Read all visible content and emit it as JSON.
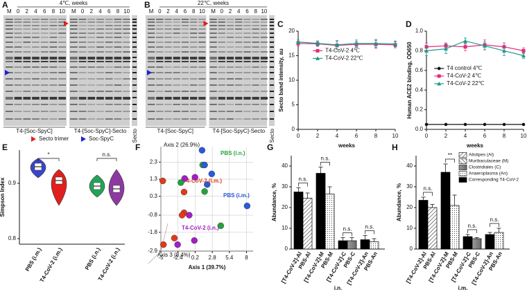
{
  "panel_labels": [
    "A",
    "B",
    "C",
    "D",
    "E",
    "F",
    "G",
    "H"
  ],
  "gels": [
    {
      "title": "4℃, weeks",
      "lanes": [
        "M",
        "0",
        "2",
        "4",
        "6",
        "8",
        "10",
        "M",
        "0",
        "2",
        "4",
        "6",
        "8",
        "10"
      ],
      "groups": [
        "T4-[Soc-SpyC]",
        "T4-[Soc-SpyC]-Secto"
      ],
      "side_label": "Secto"
    },
    {
      "title": "22℃, weeks",
      "lanes": [
        "M",
        "0",
        "2",
        "4",
        "6",
        "8",
        "10",
        "M",
        "0",
        "2",
        "4",
        "6",
        "8",
        "10"
      ],
      "groups": [
        "T4-[Soc-SpyC]",
        "T4-[Soc-SpyC]-Secto"
      ],
      "side_label": "Secto"
    }
  ],
  "gel_legend": [
    {
      "name": "Secto trimer",
      "color": "#e02020"
    },
    {
      "name": "Soc-SpyC",
      "color": "#2020d0"
    }
  ],
  "chart_data": [
    {
      "type": "line",
      "x_label": "weeks",
      "y_label": "Secto band intensity, au",
      "x": [
        0,
        2,
        4,
        6,
        8,
        10
      ],
      "xlim": [
        0,
        10
      ],
      "xticks": [
        0,
        2,
        4,
        6,
        8,
        10
      ],
      "ylim": [
        0,
        20
      ],
      "yticks": [
        0,
        5,
        10,
        15,
        20
      ],
      "legend": "upper-left",
      "series": [
        {
          "name": "T4-CoV-2 4℃",
          "color": "#e6287a",
          "marker": "square",
          "values": [
            17.5,
            17.4,
            17.1,
            17.3,
            17.3,
            17.2
          ],
          "errors": [
            0.5,
            0.5,
            0.8,
            0.6,
            0.8,
            0.6
          ]
        },
        {
          "name": "T4-CoV-2 22℃",
          "color": "#1a9a8a",
          "marker": "triangle",
          "values": [
            17.8,
            17.5,
            17.2,
            17.5,
            17.5,
            17.4
          ],
          "errors": [
            0.4,
            0.5,
            0.9,
            0.7,
            0.8,
            0.6
          ]
        }
      ]
    },
    {
      "type": "line",
      "x_label": "weeks",
      "y_label": "Human ACE2 binding, OD650",
      "x": [
        0,
        2,
        4,
        6,
        8,
        10
      ],
      "xlim": [
        0,
        10
      ],
      "xticks": [
        0,
        2,
        4,
        6,
        8,
        10
      ],
      "ylim": [
        0,
        1
      ],
      "yticks": [
        {
          "value": 0,
          "label": "0.0"
        },
        0.2,
        0.4,
        0.6,
        0.8,
        {
          "value": 1,
          "label": "1.0"
        }
      ],
      "legend": "center-left",
      "series": [
        {
          "name": "T4 control 4℃",
          "color": "#111111",
          "marker": "circle",
          "values": [
            0.05,
            0.05,
            0.05,
            0.05,
            0.05,
            0.05
          ]
        },
        {
          "name": "T4-CoV-2 4℃",
          "color": "#e6287a",
          "marker": "square",
          "values": [
            0.84,
            0.85,
            0.84,
            0.86,
            0.84,
            0.8
          ],
          "errors": [
            0.04,
            0.03,
            0.04,
            0.05,
            0.04,
            0.03
          ]
        },
        {
          "name": "T4-CoV-2 22℃",
          "color": "#1a9a8a",
          "marker": "triangle",
          "values": [
            0.8,
            0.82,
            0.9,
            0.85,
            0.8,
            0.75
          ],
          "errors": [
            0.05,
            0.05,
            0.03,
            0.04,
            0.05,
            0.03
          ]
        }
      ]
    },
    {
      "type": "violin",
      "y_label": "Simpson Index",
      "categories": [
        "PBS (i.m.)",
        "T4-CoV-2 (i.m.)",
        "PBS (i.n.)",
        "T4-CoV-2 (i.n.)"
      ],
      "colors": [
        "#3a45c8",
        "#e0201e",
        "#22a35a",
        "#8c3aa0"
      ],
      "values": [
        0.93,
        0.905,
        0.895,
        0.89
      ],
      "min": [
        0.91,
        0.86,
        0.875,
        0.86
      ],
      "max": [
        0.945,
        0.925,
        0.915,
        0.925
      ],
      "ylim": [
        0.79,
        0.96
      ],
      "yticks": [
        0.8,
        0.9
      ],
      "pair_labels": [
        "*",
        "n.s."
      ]
    },
    {
      "type": "scatter",
      "x_label": "Axis 1 (39.7%)",
      "y_label": "Axis 2 (26.9%)",
      "z_label": "Axis 3 (8.4%)",
      "xlim": [
        -5,
        9
      ],
      "xticks": [
        -5,
        -2.4,
        0.2,
        2.8,
        5.4,
        8
      ],
      "ylim": [
        -2.9,
        3.2
      ],
      "yticks": [
        -2.9,
        -1.8,
        -0.8,
        0.3,
        1.3,
        2.3
      ],
      "grid": true,
      "series": [
        {
          "name": "PBS (i.n.)",
          "color": "#22a33a",
          "x": [
            1.35,
            -1.97,
            1.64,
            4.09
          ],
          "values": [
            2.13,
            1.1,
            0.58,
            -1.42
          ]
        },
        {
          "name": "PBS (i.m.)",
          "color": "#2a5ad8",
          "x": [
            1.25,
            1.64,
            2.72,
            2.03,
            8.09
          ],
          "values": [
            2.99,
            2.13,
            1.61,
            0.99,
            -0.26
          ]
        },
        {
          "name": "T4-CoV-2 (i.m.)",
          "color": "#e03a1a",
          "x": [
            -4.71,
            -1.48,
            -1.48,
            -1.78,
            -4.61,
            -2.95
          ],
          "values": [
            1.2,
            0.55,
            -0.66,
            -0.8,
            -2.52,
            -2.14
          ]
        },
        {
          "name": "T4-CoV-2 (i.n.)",
          "color": "#a020c0",
          "x": [
            -1.39,
            0.18,
            -0.7,
            0.08,
            -2.46
          ],
          "values": [
            1.34,
            1.41,
            -0.8,
            -2.28,
            -2.52
          ]
        }
      ]
    },
    {
      "type": "bar",
      "x_label": "i.n.",
      "y_label": "Abundance, %",
      "categories": [
        "[T4-CoV-2]-Al",
        "PBS-Al",
        "[T4-CoV-2]-M",
        "PBS-M",
        "[T4-CoV-2]-C",
        "PBS-C",
        "[T4-CoV-2]-An",
        "PBS-An"
      ],
      "values": [
        27.5,
        24.5,
        36.5,
        26.5,
        4,
        4,
        4.5,
        3.5
      ],
      "errors": [
        2,
        2.5,
        3,
        3.5,
        1.5,
        1.5,
        2,
        1.5
      ],
      "fills": [
        "black",
        "hatch",
        "black",
        "dots",
        "black",
        "gray",
        "black",
        "dots"
      ],
      "ylim": [
        0,
        45
      ],
      "yticks": [
        0,
        10,
        20,
        30,
        40
      ],
      "pair_labels": [
        "n.s.",
        "n.s.",
        "n.s.",
        "n.s."
      ]
    },
    {
      "type": "bar",
      "x_label": "i.m.",
      "y_label": "Abundance, %",
      "categories": [
        "[T4-CoV-2]-Al",
        "PBS-Al",
        "[T4-CoV-2]-M",
        "PBS-M",
        "[T4-CoV-2]-C",
        "PBS-C",
        "[T4-CoV-2]-An",
        "PBS-An"
      ],
      "values": [
        23.5,
        20,
        37,
        21,
        6,
        5,
        7,
        8
      ],
      "errors": [
        1.5,
        1.5,
        4,
        5,
        1,
        0.5,
        1,
        2
      ],
      "fills": [
        "black",
        "hatch",
        "black",
        "dots",
        "black",
        "gray",
        "black",
        "dots"
      ],
      "ylim": [
        0,
        45
      ],
      "yticks": [
        0,
        10,
        20,
        30,
        40
      ],
      "pair_labels": [
        "n.s.",
        "**",
        "n.s.",
        "n.s."
      ],
      "legend_entries": [
        {
          "name": "Alistipes (Al)",
          "fill": "hatch"
        },
        {
          "name": "Muribaculaceae (M)",
          "fill": "hatch2"
        },
        {
          "name": "Clostridiales (C)",
          "fill": "gray"
        },
        {
          "name": "Anaeroplasma (An)",
          "fill": "dots"
        },
        {
          "name": "Corresponding T4-CoV-2",
          "fill": "black"
        }
      ]
    }
  ]
}
